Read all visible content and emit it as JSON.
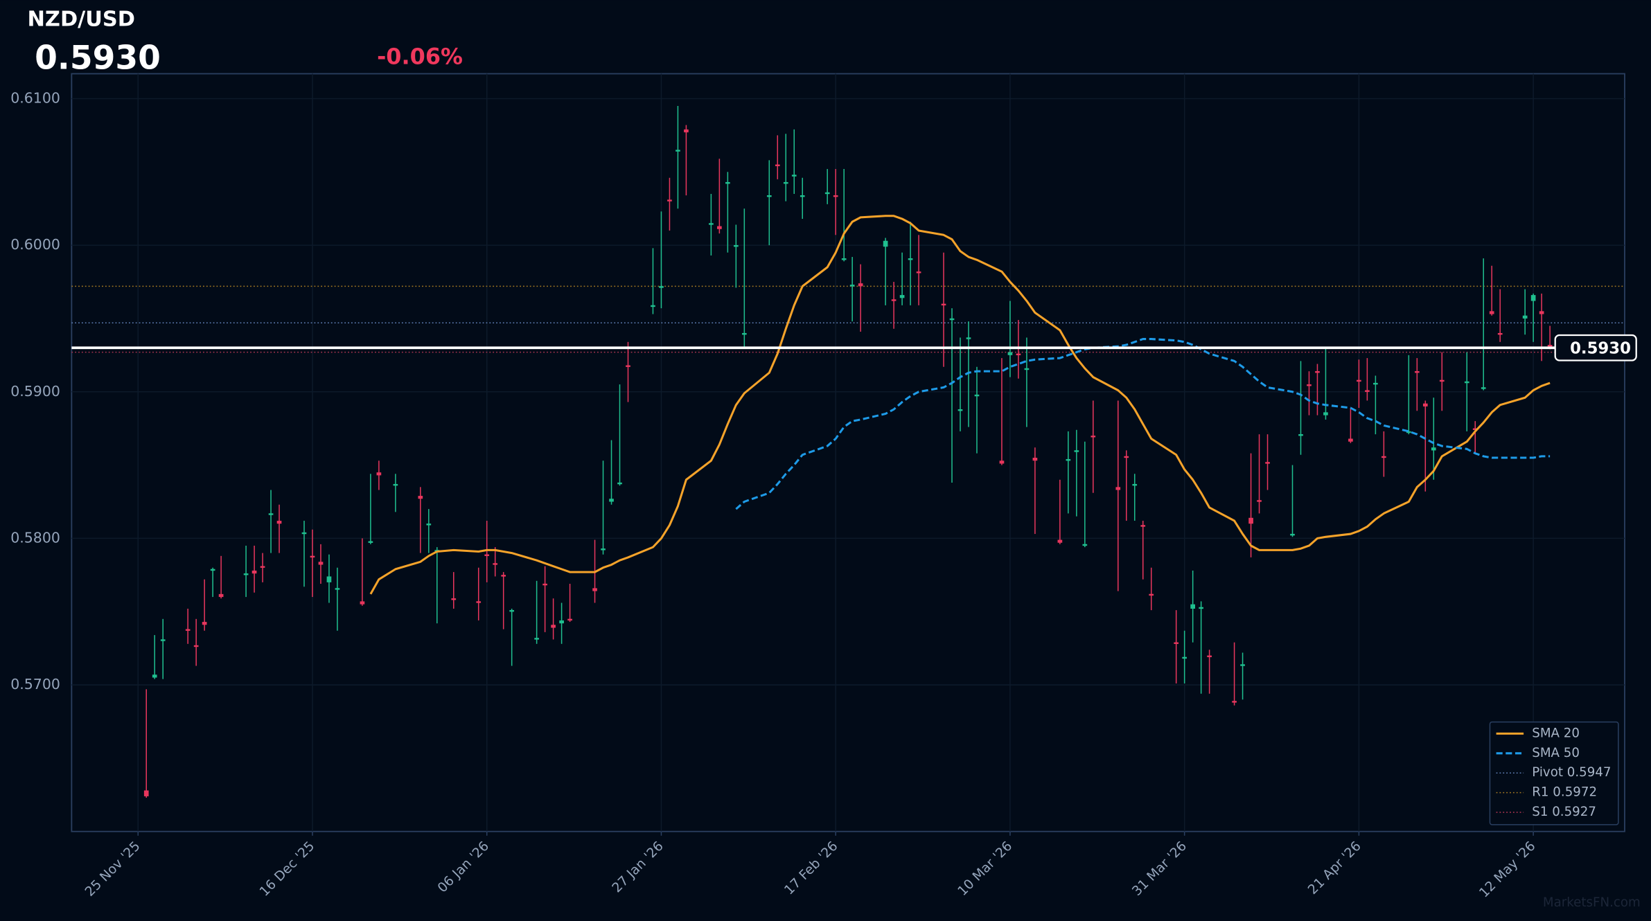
{
  "chart_data": {
    "type": "candlestick",
    "title": "NZD/USD",
    "last_price": {
      "value": 0.593,
      "label": "0.5930"
    },
    "change": "-0.06%",
    "watermark": "MarketsFN.com",
    "up_color": "#1fbf8f",
    "down_color": "#e8365d",
    "grid": true,
    "legend": "lower right",
    "ylim": [
      0.56,
      0.6117
    ],
    "yticks": [
      {
        "value": 0.57,
        "label": "0.5700"
      },
      {
        "value": 0.58,
        "label": "0.5800"
      },
      {
        "value": 0.59,
        "label": "0.5900"
      },
      {
        "value": 0.6,
        "label": "0.6000"
      },
      {
        "value": 0.61,
        "label": "0.6100"
      }
    ],
    "xlim": [
      "2025-11-17",
      "2026-05-23"
    ],
    "xticks": [
      {
        "value": "2025-11-25",
        "label": "25 Nov '25"
      },
      {
        "value": "2025-12-16",
        "label": "16 Dec '25"
      },
      {
        "value": "2026-01-06",
        "label": "06 Jan '26"
      },
      {
        "value": "2026-01-27",
        "label": "27 Jan '26"
      },
      {
        "value": "2026-02-17",
        "label": "17 Feb '26"
      },
      {
        "value": "2026-03-10",
        "label": "10 Mar '26"
      },
      {
        "value": "2026-03-31",
        "label": "31 Mar '26"
      },
      {
        "value": "2026-04-21",
        "label": "21 Apr '26"
      },
      {
        "value": "2026-05-12",
        "label": "12 May '26"
      }
    ],
    "x": [
      "2025-11-26",
      "2025-11-27",
      "2025-11-28",
      "2025-12-01",
      "2025-12-02",
      "2025-12-03",
      "2025-12-04",
      "2025-12-05",
      "2025-12-08",
      "2025-12-09",
      "2025-12-10",
      "2025-12-11",
      "2025-12-12",
      "2025-12-15",
      "2025-12-16",
      "2025-12-17",
      "2025-12-18",
      "2025-12-19",
      "2025-12-22",
      "2025-12-23",
      "2025-12-24",
      "2025-12-26",
      "2025-12-29",
      "2025-12-30",
      "2025-12-31",
      "2026-01-02",
      "2026-01-05",
      "2026-01-06",
      "2026-01-07",
      "2026-01-08",
      "2026-01-09",
      "2026-01-12",
      "2026-01-13",
      "2026-01-14",
      "2026-01-15",
      "2026-01-16",
      "2026-01-19",
      "2026-01-20",
      "2026-01-21",
      "2026-01-22",
      "2026-01-23",
      "2026-01-26",
      "2026-01-27",
      "2026-01-28",
      "2026-01-29",
      "2026-01-30",
      "2026-02-02",
      "2026-02-03",
      "2026-02-04",
      "2026-02-05",
      "2026-02-06",
      "2026-02-09",
      "2026-02-10",
      "2026-02-11",
      "2026-02-12",
      "2026-02-13",
      "2026-02-16",
      "2026-02-17",
      "2026-02-18",
      "2026-02-19",
      "2026-02-20",
      "2026-02-23",
      "2026-02-24",
      "2026-02-25",
      "2026-02-26",
      "2026-02-27",
      "2026-03-02",
      "2026-03-03",
      "2026-03-04",
      "2026-03-05",
      "2026-03-06",
      "2026-03-09",
      "2026-03-10",
      "2026-03-11",
      "2026-03-12",
      "2026-03-13",
      "2026-03-16",
      "2026-03-17",
      "2026-03-18",
      "2026-03-19",
      "2026-03-20",
      "2026-03-23",
      "2026-03-24",
      "2026-03-25",
      "2026-03-26",
      "2026-03-27",
      "2026-03-30",
      "2026-03-31",
      "2026-04-01",
      "2026-04-02",
      "2026-04-03",
      "2026-04-06",
      "2026-04-07",
      "2026-04-08",
      "2026-04-09",
      "2026-04-10",
      "2026-04-13",
      "2026-04-14",
      "2026-04-15",
      "2026-04-16",
      "2026-04-17",
      "2026-04-20",
      "2026-04-21",
      "2026-04-22",
      "2026-04-23",
      "2026-04-24",
      "2026-04-27",
      "2026-04-28",
      "2026-04-29",
      "2026-04-30",
      "2026-05-01",
      "2026-05-04",
      "2026-05-05",
      "2026-05-06",
      "2026-05-07",
      "2026-05-08",
      "2026-05-11",
      "2026-05-12",
      "2026-05-13",
      "2026-05-14"
    ],
    "open": [
      0.5628,
      0.5705,
      0.573,
      0.5738,
      0.5727,
      0.5743,
      0.5778,
      0.5762,
      0.5775,
      0.5778,
      0.5781,
      0.5816,
      0.5812,
      0.5803,
      0.5788,
      0.5784,
      0.577,
      0.5765,
      0.5757,
      0.5797,
      0.5845,
      0.5836,
      0.5829,
      0.5809,
      0.5791,
      0.5759,
      0.5757,
      0.5789,
      0.5783,
      0.5775,
      0.575,
      0.5731,
      0.5769,
      0.5741,
      0.5742,
      0.5745,
      0.5766,
      0.5792,
      0.5825,
      0.5837,
      0.5918,
      0.5958,
      0.5971,
      0.6031,
      0.6064,
      0.6079,
      0.6014,
      0.6013,
      0.6042,
      0.5999,
      0.5939,
      0.6033,
      0.6055,
      0.6042,
      0.6047,
      0.6033,
      0.6035,
      0.6034,
      0.599,
      0.5972,
      0.5974,
      0.5999,
      0.5963,
      0.5964,
      0.599,
      0.5982,
      0.596,
      0.5949,
      0.5887,
      0.5936,
      0.5897,
      0.5853,
      0.5925,
      0.5926,
      0.5915,
      0.5855,
      0.5799,
      0.5853,
      0.5859,
      0.5795,
      0.587,
      0.5835,
      0.5856,
      0.5836,
      0.5809,
      0.5762,
      0.5729,
      0.5718,
      0.5752,
      0.5752,
      0.572,
      0.5689,
      0.5713,
      0.5814,
      0.5826,
      0.5852,
      0.5802,
      0.587,
      0.5905,
      0.5914,
      0.5884,
      0.5868,
      0.5908,
      0.5901,
      0.5905,
      0.5856,
      0.5872,
      0.5914,
      0.5892,
      0.586,
      0.5908,
      0.5906,
      0.5875,
      0.5902,
      0.5955,
      0.594,
      0.595,
      0.5962,
      0.5955,
      0.5932
    ],
    "high": [
      0.5697,
      0.5734,
      0.5745,
      0.5752,
      0.5745,
      0.5772,
      0.578,
      0.5788,
      0.5795,
      0.5795,
      0.579,
      0.5833,
      0.5823,
      0.5812,
      0.5806,
      0.5796,
      0.5789,
      0.578,
      0.58,
      0.5844,
      0.5853,
      0.5844,
      0.5835,
      0.582,
      0.5794,
      0.5777,
      0.578,
      0.5812,
      0.5794,
      0.5777,
      0.5752,
      0.5771,
      0.5781,
      0.5759,
      0.5756,
      0.5769,
      0.5799,
      0.5853,
      0.5867,
      0.5905,
      0.5934,
      0.5998,
      0.6023,
      0.6046,
      0.6095,
      0.6082,
      0.6035,
      0.6059,
      0.605,
      0.6014,
      0.6025,
      0.6058,
      0.6075,
      0.6076,
      0.6079,
      0.6046,
      0.6052,
      0.6052,
      0.6052,
      0.5992,
      0.5987,
      0.6005,
      0.5975,
      0.5995,
      0.6016,
      0.6007,
      0.5995,
      0.5957,
      0.5937,
      0.5948,
      0.5917,
      0.5923,
      0.5962,
      0.5949,
      0.5937,
      0.5862,
      0.584,
      0.5873,
      0.5874,
      0.5866,
      0.5894,
      0.5894,
      0.586,
      0.5844,
      0.5812,
      0.578,
      0.5751,
      0.5737,
      0.5778,
      0.5757,
      0.5724,
      0.5729,
      0.5722,
      0.5858,
      0.5871,
      0.5871,
      0.585,
      0.5921,
      0.5914,
      0.5919,
      0.593,
      0.5889,
      0.5922,
      0.5923,
      0.5911,
      0.5873,
      0.5925,
      0.5923,
      0.5894,
      0.5896,
      0.5927,
      0.5927,
      0.588,
      0.5991,
      0.5986,
      0.597,
      0.597,
      0.5967,
      0.5967,
      0.5945
    ],
    "low": [
      0.5623,
      0.5704,
      0.5704,
      0.5728,
      0.5713,
      0.5737,
      0.576,
      0.5759,
      0.576,
      0.5763,
      0.577,
      0.579,
      0.579,
      0.5767,
      0.576,
      0.5769,
      0.5756,
      0.5737,
      0.5754,
      0.5796,
      0.5833,
      0.5818,
      0.579,
      0.579,
      0.5742,
      0.5752,
      0.5744,
      0.577,
      0.5774,
      0.5738,
      0.5713,
      0.5728,
      0.5736,
      0.5731,
      0.5728,
      0.5743,
      0.5756,
      0.5789,
      0.5823,
      0.5836,
      0.5893,
      0.5953,
      0.5957,
      0.601,
      0.6025,
      0.6034,
      0.5993,
      0.6008,
      0.5995,
      0.5971,
      0.593,
      0.6,
      0.6045,
      0.603,
      0.6035,
      0.6018,
      0.6028,
      0.6007,
      0.5989,
      0.5948,
      0.5941,
      0.5959,
      0.5943,
      0.5959,
      0.5959,
      0.5959,
      0.5917,
      0.5838,
      0.5873,
      0.5876,
      0.5858,
      0.585,
      0.591,
      0.5909,
      0.5876,
      0.5803,
      0.5796,
      0.5817,
      0.5815,
      0.5794,
      0.5831,
      0.5764,
      0.5812,
      0.5812,
      0.5772,
      0.5751,
      0.5701,
      0.5701,
      0.5729,
      0.5694,
      0.5694,
      0.5686,
      0.569,
      0.5787,
      0.5817,
      0.5833,
      0.5801,
      0.5857,
      0.5884,
      0.5884,
      0.5881,
      0.5865,
      0.5889,
      0.5894,
      0.5871,
      0.5842,
      0.5871,
      0.5887,
      0.5832,
      0.584,
      0.5887,
      0.5873,
      0.5858,
      0.5901,
      0.5952,
      0.5934,
      0.5939,
      0.5934,
      0.5921,
      0.5929
    ],
    "close": [
      0.5624,
      0.5707,
      0.5731,
      0.5737,
      0.5726,
      0.5741,
      0.5779,
      0.576,
      0.5776,
      0.5776,
      0.578,
      0.5817,
      0.581,
      0.5804,
      0.5787,
      0.5782,
      0.5774,
      0.5766,
      0.5755,
      0.5798,
      0.5843,
      0.5837,
      0.5827,
      0.581,
      0.5792,
      0.5758,
      0.5756,
      0.5788,
      0.5782,
      0.5774,
      0.5751,
      0.5732,
      0.5768,
      0.5739,
      0.5744,
      0.5744,
      0.5764,
      0.5793,
      0.5827,
      0.5838,
      0.5917,
      0.5959,
      0.5972,
      0.603,
      0.6065,
      0.6077,
      0.6015,
      0.6011,
      0.6043,
      0.6,
      0.594,
      0.6034,
      0.6054,
      0.6043,
      0.6048,
      0.6034,
      0.6036,
      0.6033,
      0.5991,
      0.5973,
      0.5972,
      0.6003,
      0.5962,
      0.5966,
      0.5991,
      0.5981,
      0.5959,
      0.595,
      0.5888,
      0.5937,
      0.5898,
      0.5851,
      0.5927,
      0.5925,
      0.5916,
      0.5853,
      0.5797,
      0.5854,
      0.586,
      0.5796,
      0.5869,
      0.5833,
      0.5855,
      0.5837,
      0.5808,
      0.5761,
      0.5728,
      0.5719,
      0.5755,
      0.5753,
      0.5719,
      0.5688,
      0.5714,
      0.581,
      0.5825,
      0.5851,
      0.5803,
      0.5871,
      0.5904,
      0.5913,
      0.5886,
      0.5866,
      0.5907,
      0.59,
      0.5906,
      0.5855,
      0.5873,
      0.5913,
      0.589,
      0.5862,
      0.5907,
      0.5907,
      0.5874,
      0.5903,
      0.5953,
      0.5939,
      0.5952,
      0.5966,
      0.5953,
      0.593
    ],
    "series": [
      {
        "name": "SMA 20",
        "color": "#f5a32a",
        "style": "solid",
        "values": [
          null,
          null,
          null,
          null,
          null,
          null,
          null,
          null,
          null,
          null,
          null,
          null,
          null,
          null,
          null,
          null,
          null,
          null,
          null,
          0.5762,
          0.5772,
          0.5779,
          0.5784,
          0.5788,
          0.5791,
          0.5792,
          0.5791,
          0.5792,
          0.5792,
          0.5791,
          0.579,
          0.5785,
          0.5783,
          0.5781,
          0.5779,
          0.5777,
          0.5777,
          0.578,
          0.5782,
          0.5785,
          0.5787,
          0.5794,
          0.58,
          0.5809,
          0.5822,
          0.584,
          0.5853,
          0.5864,
          0.5878,
          0.5891,
          0.5899,
          0.5913,
          0.5926,
          0.5943,
          0.5959,
          0.5972,
          0.5985,
          0.5995,
          0.6008,
          0.6016,
          0.6019,
          0.602,
          0.602,
          0.6018,
          0.6015,
          0.601,
          0.6007,
          0.6004,
          0.5996,
          0.5992,
          0.599,
          0.5982,
          0.5975,
          0.5969,
          0.5962,
          0.5954,
          0.5942,
          0.5932,
          0.5923,
          0.5916,
          0.591,
          0.5901,
          0.5896,
          0.5888,
          0.5878,
          0.5868,
          0.5857,
          0.5847,
          0.584,
          0.5831,
          0.5821,
          0.5812,
          0.5803,
          0.5795,
          0.5792,
          0.5792,
          0.5792,
          0.5793,
          0.5795,
          0.58,
          0.5801,
          0.5803,
          0.5805,
          0.5808,
          0.5813,
          0.5817,
          0.5825,
          0.5835,
          0.584,
          0.5846,
          0.5856,
          0.5866,
          0.5873,
          0.5879,
          0.5886,
          0.5891,
          0.5896,
          0.5901,
          0.5904,
          0.5906
        ]
      },
      {
        "name": "SMA 50",
        "color": "#1e9be8",
        "style": "dashed",
        "values": [
          null,
          null,
          null,
          null,
          null,
          null,
          null,
          null,
          null,
          null,
          null,
          null,
          null,
          null,
          null,
          null,
          null,
          null,
          null,
          null,
          null,
          null,
          null,
          null,
          null,
          null,
          null,
          null,
          null,
          null,
          null,
          null,
          null,
          null,
          null,
          null,
          null,
          null,
          null,
          null,
          null,
          null,
          null,
          null,
          null,
          null,
          null,
          null,
          null,
          0.582,
          0.5825,
          0.5831,
          0.5837,
          0.5844,
          0.585,
          0.5857,
          0.5863,
          0.5868,
          0.5876,
          0.588,
          0.5881,
          0.5885,
          0.5888,
          0.5893,
          0.5897,
          0.59,
          0.5903,
          0.5906,
          0.591,
          0.5913,
          0.5914,
          0.5914,
          0.5917,
          0.5919,
          0.5921,
          0.5922,
          0.5923,
          0.5925,
          0.5927,
          0.5929,
          0.593,
          0.5931,
          0.5932,
          0.5934,
          0.5936,
          0.5936,
          0.5935,
          0.5934,
          0.5932,
          0.5929,
          0.5926,
          0.5921,
          0.5917,
          0.5912,
          0.5907,
          0.5903,
          0.59,
          0.5898,
          0.5894,
          0.5892,
          0.5891,
          0.5889,
          0.5886,
          0.5882,
          0.588,
          0.5877,
          0.5873,
          0.5871,
          0.5868,
          0.5865,
          0.5863,
          0.5861,
          0.5858,
          0.5856,
          0.5855,
          0.5855,
          0.5855,
          0.5855,
          0.5856,
          0.5856
        ]
      }
    ],
    "levels": [
      {
        "name": "Pivot 0.5947",
        "value": 0.5947,
        "color": "#5f7fb5"
      },
      {
        "name": "R1 0.5972",
        "value": 0.5972,
        "color": "#a57a22"
      },
      {
        "name": "S1 0.5927",
        "value": 0.5927,
        "color": "#a8334f"
      }
    ]
  }
}
